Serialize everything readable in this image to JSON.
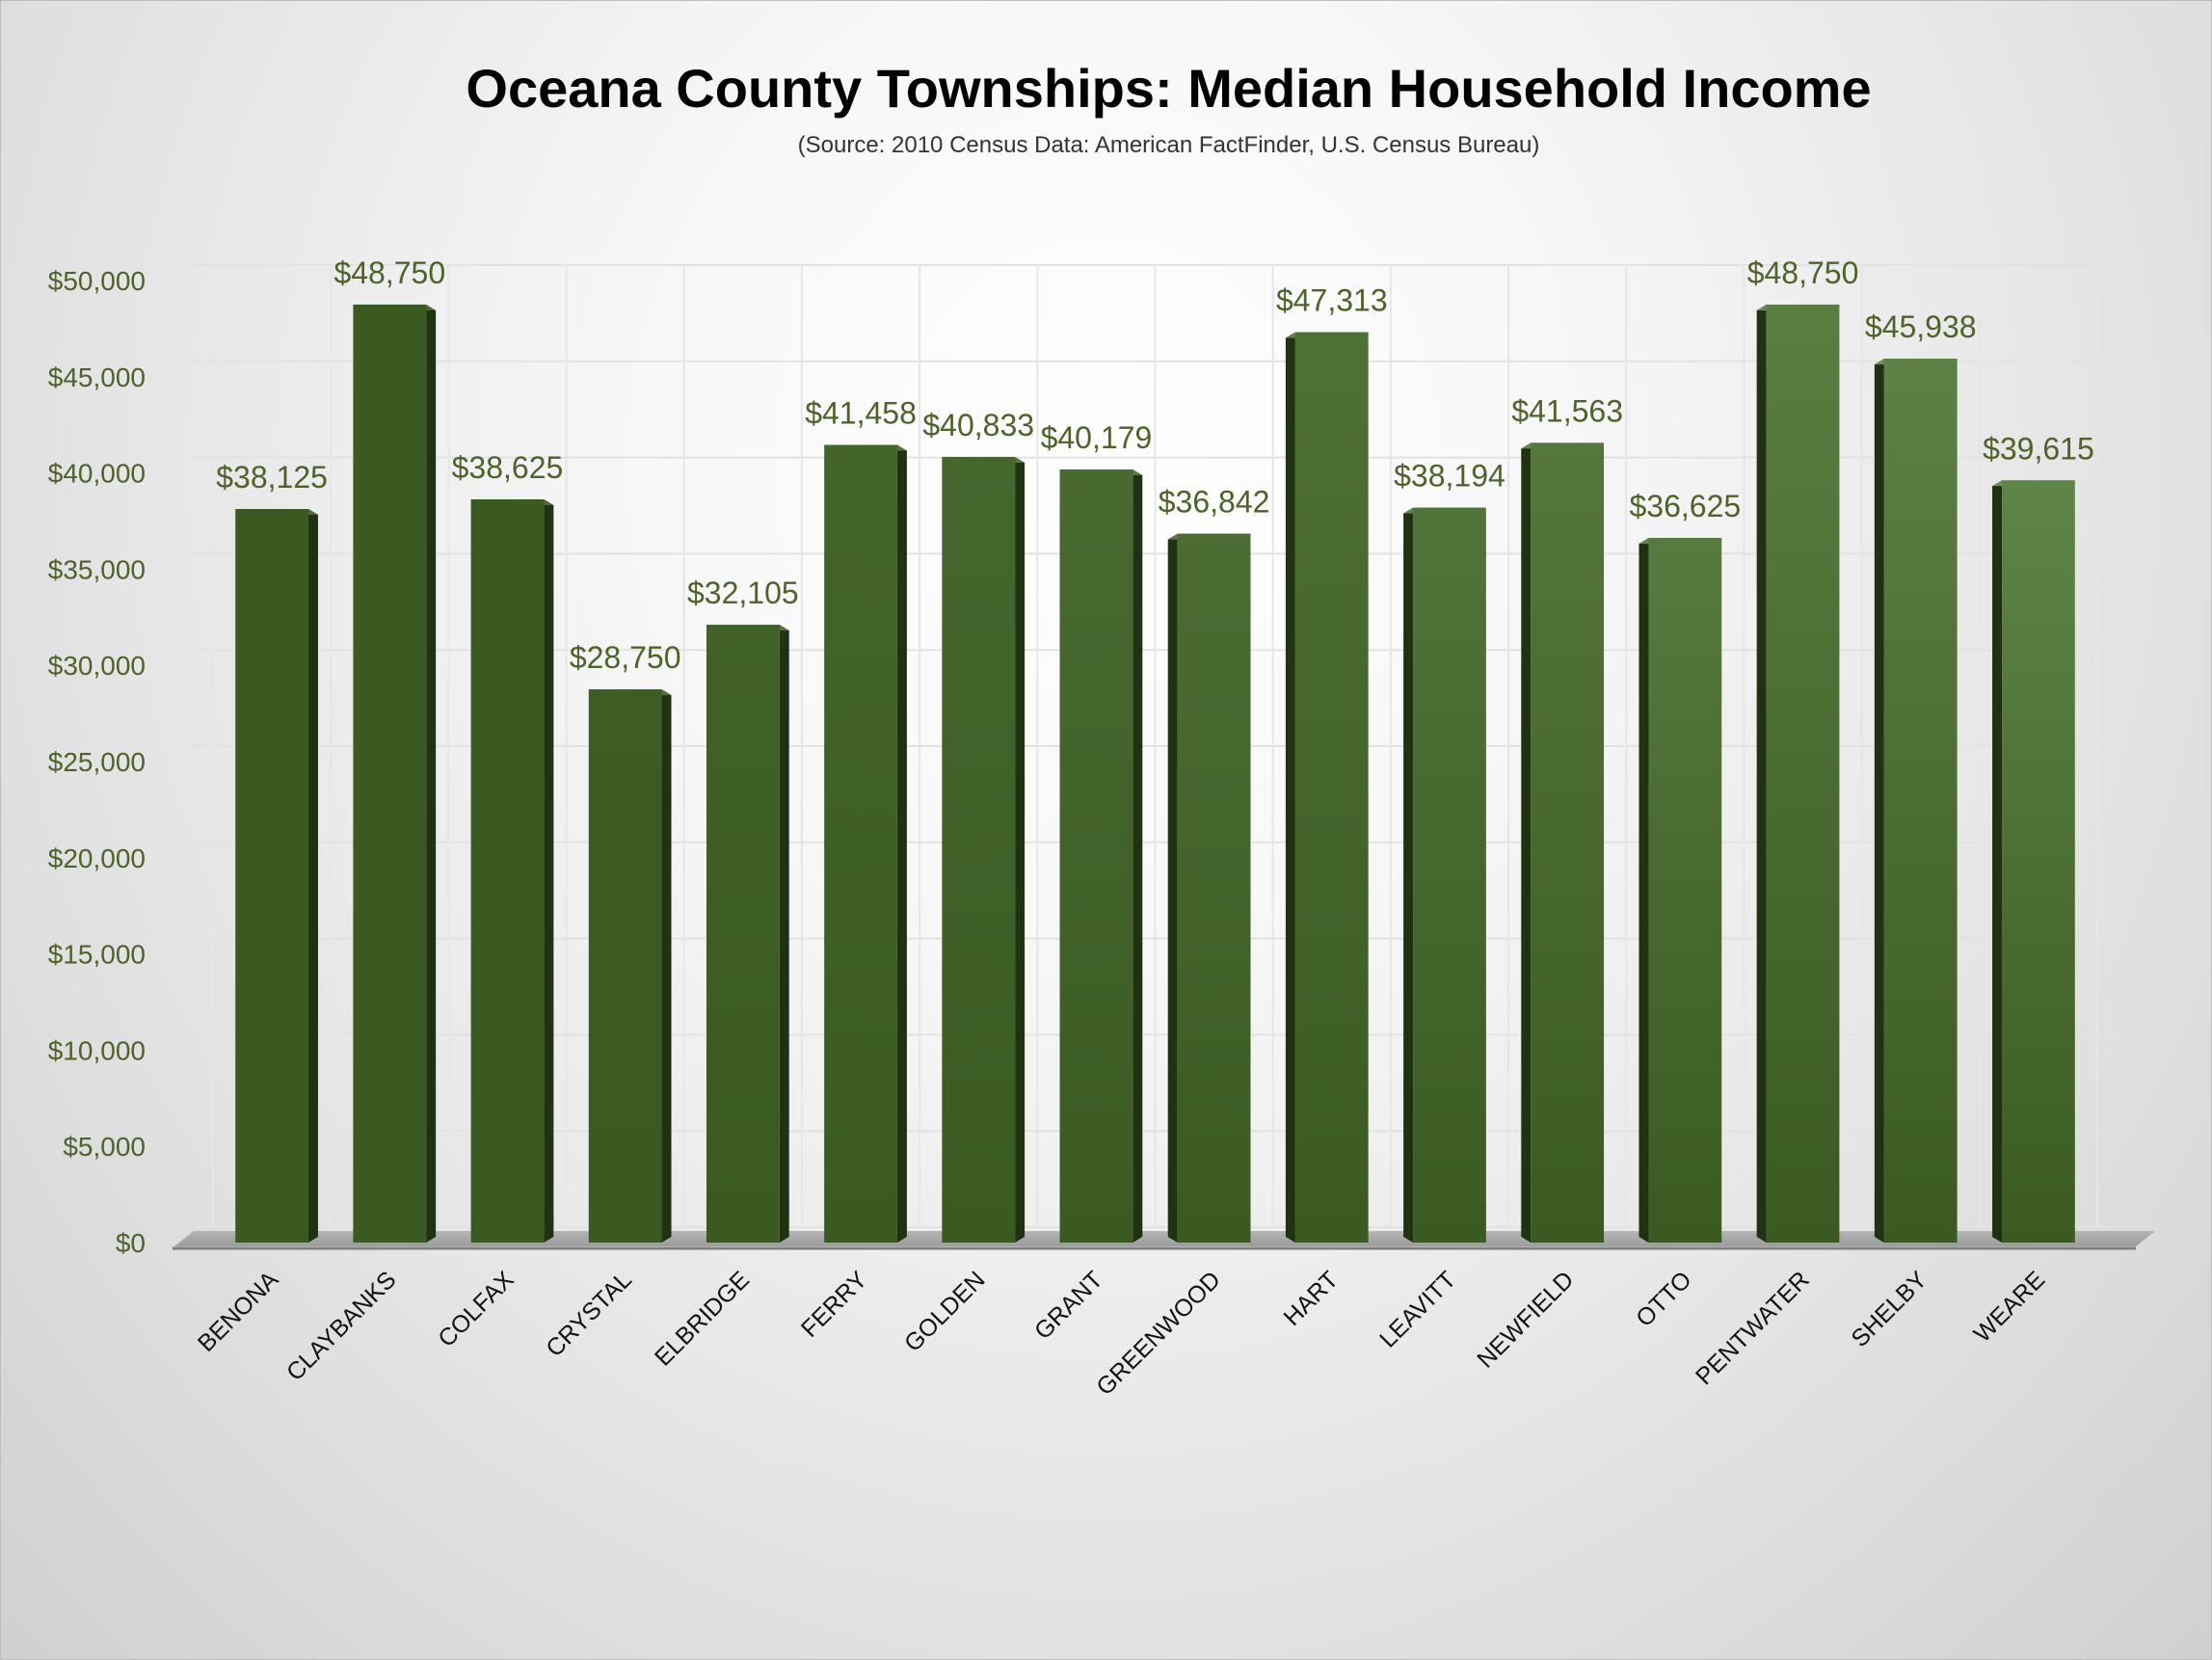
{
  "chart_data": {
    "type": "bar",
    "title": "Oceana County Townships: Median Household Income",
    "subtitle": "(Source: 2010 Census Data: American FactFinder, U.S. Census Bureau)",
    "xlabel": "",
    "ylabel": "",
    "ylim": [
      0,
      50000
    ],
    "yticks": [
      "$0",
      "$5,000",
      "$10,000",
      "$15,000",
      "$20,000",
      "$25,000",
      "$30,000",
      "$35,000",
      "$40,000",
      "$45,000",
      "$50,000"
    ],
    "grid": true,
    "legend": "none",
    "categories": [
      "BENONA",
      "CLAYBANKS",
      "COLFAX",
      "CRYSTAL",
      "ELBRIDGE",
      "FERRY",
      "GOLDEN",
      "GRANT",
      "GREENWOOD",
      "HART",
      "LEAVITT",
      "NEWFIELD",
      "OTTO",
      "PENTWATER",
      "SHELBY",
      "WEARE"
    ],
    "values": [
      38125,
      48750,
      38625,
      28750,
      32105,
      41458,
      40833,
      40179,
      36842,
      47313,
      38194,
      41563,
      36625,
      48750,
      45938,
      39615
    ],
    "data_labels": [
      "$38,125",
      "$48,750",
      "$38,625",
      "$28,750",
      "$32,105",
      "$41,458",
      "$40,833",
      "$40,179",
      "$36,842",
      "$47,313",
      "$38,194",
      "$41,563",
      "$36,625",
      "$48,750",
      "$45,938",
      "$39,615"
    ],
    "colors": {
      "bar_dark": "#3a5a22",
      "bar_light": "#5f8448",
      "bar_side": "#1f3212",
      "label": "#4f6228"
    }
  }
}
